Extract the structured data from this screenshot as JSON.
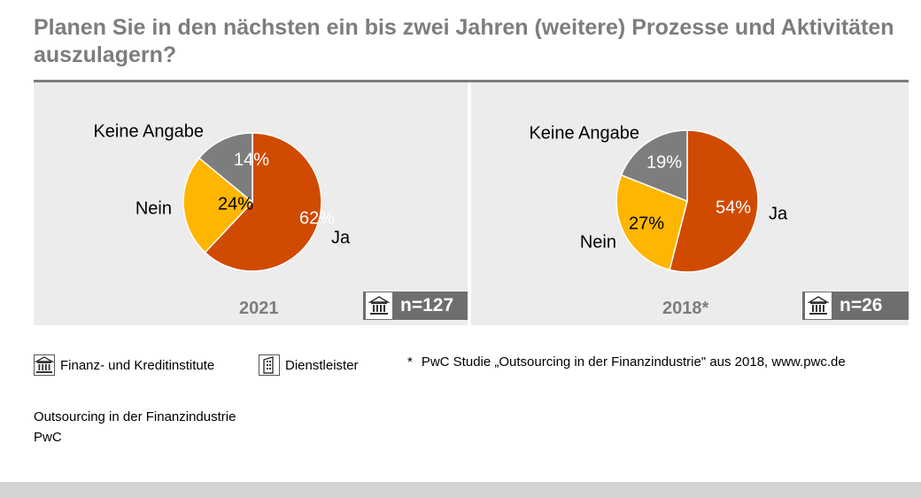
{
  "title": "Planen Sie in den nächsten ein bis zwei Jahren (weitere) Prozesse und Aktivitäten auszulagern?",
  "chart_data": [
    {
      "type": "pie",
      "year": "2021",
      "n": "n=127",
      "slices": [
        {
          "label": "Ja",
          "value": 62,
          "value_label": "62%",
          "color": "#d04a02"
        },
        {
          "label": "Nein",
          "value": 24,
          "value_label": "24%",
          "color": "#ffb600"
        },
        {
          "label": "Keine Angabe",
          "value": 14,
          "value_label": "14%",
          "color": "#7d7d7d"
        }
      ]
    },
    {
      "type": "pie",
      "year": "2018*",
      "n": "n=26",
      "slices": [
        {
          "label": "Ja",
          "value": 54,
          "value_label": "54%",
          "color": "#d04a02"
        },
        {
          "label": "Nein",
          "value": 27,
          "value_label": "27%",
          "color": "#ffb600"
        },
        {
          "label": "Keine Angabe",
          "value": 19,
          "value_label": "19%",
          "color": "#7d7d7d"
        }
      ]
    }
  ],
  "legend": {
    "bank_label": "Finanz- und Kreditinstitute",
    "provider_label": "Dienstleister",
    "note": "PwC Studie „Outsourcing in der Finanzindustrie\" aus 2018, www.pwc.de",
    "note_marker": "*"
  },
  "footer": {
    "line1": "Outsourcing in der Finanzindustrie",
    "line2": "PwC"
  },
  "icons": {
    "bank": "bank-icon",
    "building": "building-icon"
  }
}
